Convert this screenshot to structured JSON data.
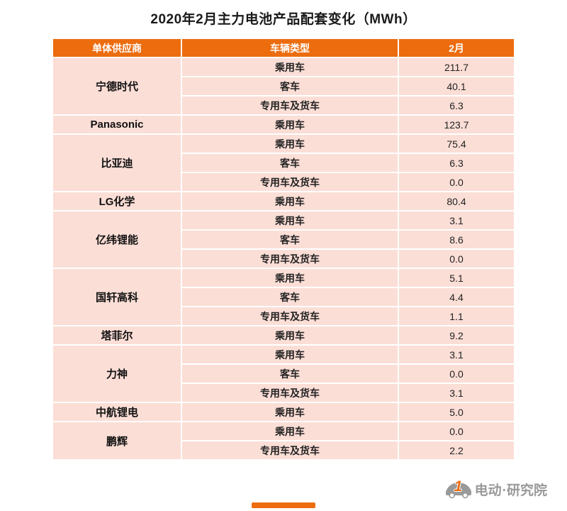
{
  "title": "2020年2月主力电池产品配套变化（MWh）",
  "chart_data": {
    "type": "table",
    "title": "2020年2月主力电池产品配套变化（MWh）",
    "unit": "MWh",
    "headers": [
      "单体供应商",
      "车辆类型",
      "2月"
    ],
    "groups": [
      {
        "supplier": "宁德时代",
        "rows": [
          {
            "vehicle_type": "乘用车",
            "value": "211.7"
          },
          {
            "vehicle_type": "客车",
            "value": "40.1"
          },
          {
            "vehicle_type": "专用车及货车",
            "value": "6.3"
          }
        ]
      },
      {
        "supplier": "Panasonic",
        "rows": [
          {
            "vehicle_type": "乘用车",
            "value": "123.7"
          }
        ]
      },
      {
        "supplier": "比亚迪",
        "rows": [
          {
            "vehicle_type": "乘用车",
            "value": "75.4"
          },
          {
            "vehicle_type": "客车",
            "value": "6.3"
          },
          {
            "vehicle_type": "专用车及货车",
            "value": "0.0"
          }
        ]
      },
      {
        "supplier": "LG化学",
        "rows": [
          {
            "vehicle_type": "乘用车",
            "value": "80.4"
          }
        ]
      },
      {
        "supplier": "亿纬锂能",
        "rows": [
          {
            "vehicle_type": "乘用车",
            "value": "3.1"
          },
          {
            "vehicle_type": "客车",
            "value": "8.6"
          },
          {
            "vehicle_type": "专用车及货车",
            "value": "0.0"
          }
        ]
      },
      {
        "supplier": "国轩高科",
        "rows": [
          {
            "vehicle_type": "乘用车",
            "value": "5.1"
          },
          {
            "vehicle_type": "客车",
            "value": "4.4"
          },
          {
            "vehicle_type": "专用车及货车",
            "value": "1.1"
          }
        ]
      },
      {
        "supplier": "塔菲尔",
        "rows": [
          {
            "vehicle_type": "乘用车",
            "value": "9.2"
          }
        ]
      },
      {
        "supplier": "力神",
        "rows": [
          {
            "vehicle_type": "乘用车",
            "value": "3.1"
          },
          {
            "vehicle_type": "客车",
            "value": "0.0"
          },
          {
            "vehicle_type": "专用车及货车",
            "value": "3.1"
          }
        ]
      },
      {
        "supplier": "中航锂电",
        "rows": [
          {
            "vehicle_type": "乘用车",
            "value": "5.0"
          }
        ]
      },
      {
        "supplier": "鹏辉",
        "rows": [
          {
            "vehicle_type": "乘用车",
            "value": "0.0"
          },
          {
            "vehicle_type": "专用车及货车",
            "value": "2.2"
          }
        ]
      }
    ]
  },
  "footer": {
    "logo_number": "1",
    "logo_text": "电动",
    "logo_suffix": "·研究院"
  },
  "colors": {
    "header_bg": "#EC6C0E",
    "row_bg": "#FBDED6",
    "accent": "#EC6C0E",
    "brand_gray": "#9A9A9A",
    "title_color": "#1A1A1A",
    "cell_text": "#222222"
  }
}
